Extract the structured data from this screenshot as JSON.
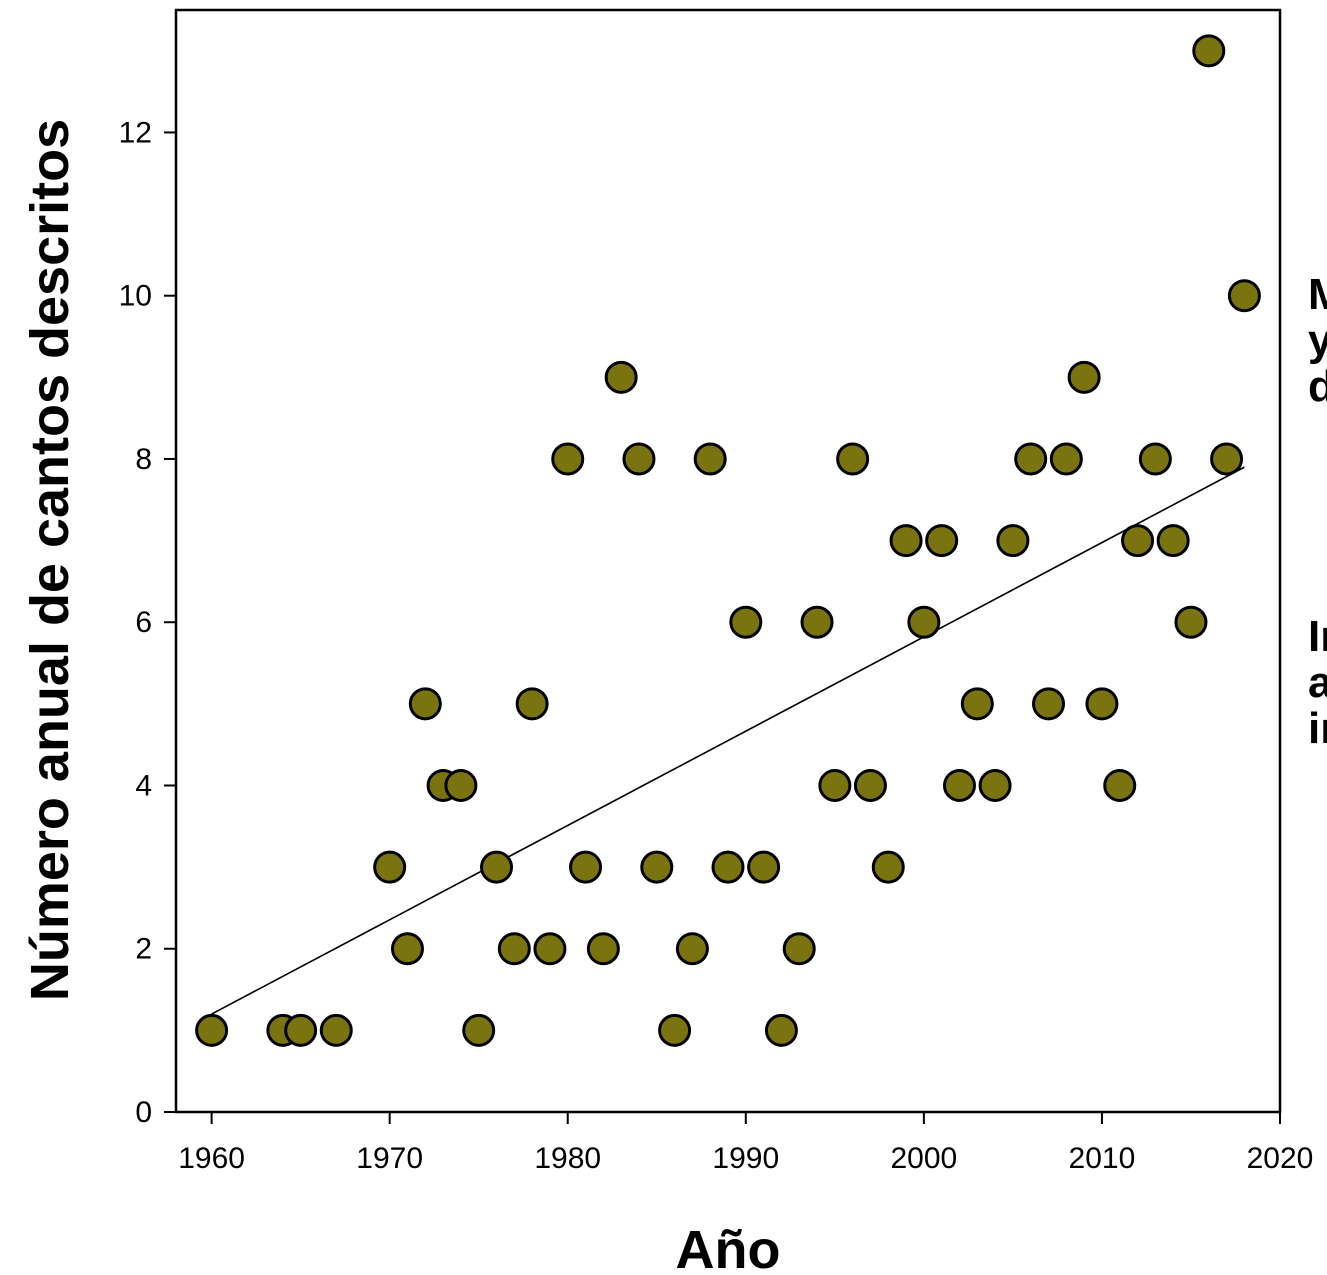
{
  "chart_data": {
    "type": "scatter",
    "xlabel": "Año",
    "ylabel": "Número anual de cantos descritos",
    "xlim": [
      1958,
      2020
    ],
    "ylim": [
      0,
      13.5
    ],
    "xticks": [
      "1960",
      "1970",
      "1980",
      "1990",
      "2000",
      "2010",
      "2020"
    ],
    "yticks": [
      "0",
      "2",
      "4",
      "6",
      "8",
      "10",
      "12"
    ],
    "grid": false,
    "legend": "none",
    "marker_color": "#7a7410",
    "marker_edge": "#000000",
    "points": [
      [
        1960,
        1
      ],
      [
        1964,
        1
      ],
      [
        1965,
        1
      ],
      [
        1967,
        1
      ],
      [
        1970,
        3
      ],
      [
        1971,
        2
      ],
      [
        1972,
        5
      ],
      [
        1973,
        4
      ],
      [
        1974,
        4
      ],
      [
        1975,
        1
      ],
      [
        1976,
        3
      ],
      [
        1977,
        2
      ],
      [
        1978,
        5
      ],
      [
        1979,
        2
      ],
      [
        1980,
        8
      ],
      [
        1981,
        3
      ],
      [
        1982,
        2
      ],
      [
        1983,
        9
      ],
      [
        1984,
        8
      ],
      [
        1985,
        3
      ],
      [
        1986,
        1
      ],
      [
        1987,
        2
      ],
      [
        1988,
        8
      ],
      [
        1989,
        3
      ],
      [
        1990,
        6
      ],
      [
        1991,
        3
      ],
      [
        1992,
        1
      ],
      [
        1993,
        2
      ],
      [
        1994,
        6
      ],
      [
        1995,
        4
      ],
      [
        1996,
        8
      ],
      [
        1997,
        4
      ],
      [
        1998,
        3
      ],
      [
        1999,
        7
      ],
      [
        2000,
        6
      ],
      [
        2001,
        7
      ],
      [
        2002,
        4
      ],
      [
        2003,
        5
      ],
      [
        2004,
        4
      ],
      [
        2005,
        7
      ],
      [
        2006,
        8
      ],
      [
        2007,
        5
      ],
      [
        2008,
        8
      ],
      [
        2009,
        9
      ],
      [
        2010,
        5
      ],
      [
        2011,
        4
      ],
      [
        2012,
        7
      ],
      [
        2013,
        8
      ],
      [
        2014,
        7
      ],
      [
        2015,
        6
      ],
      [
        2016,
        13
      ],
      [
        2017,
        8
      ],
      [
        2018,
        10
      ]
    ],
    "trendline": {
      "x": [
        1960,
        2018
      ],
      "y": [
        1.2,
        7.9
      ]
    }
  },
  "side_text": {
    "block1": "M\ny\nd",
    "block2": "In\na\nin"
  }
}
